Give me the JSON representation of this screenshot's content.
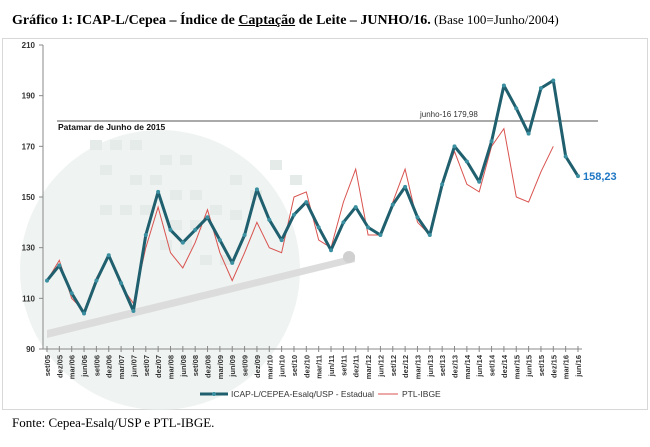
{
  "title": {
    "prefix": "Gráfico 1: ICAP-L/Cepea – Índice de ",
    "underlined": "Captação",
    "rest": " de Leite – JUNHO/16.",
    "base": " (Base 100=Junho/2004)"
  },
  "footer": "Fonte: Cepea-Esalq/USP e PTL-IBGE.",
  "colors": {
    "icap": "#1f5f6e",
    "icap_marker": "#3a8fa0",
    "ptl": "#d9534f",
    "last_label": "#1f77c4",
    "ref_line": "#555555"
  },
  "chart_data": {
    "type": "line",
    "ylim": [
      90,
      210
    ],
    "yticks": [
      90,
      110,
      130,
      150,
      170,
      190,
      210
    ],
    "categories": [
      "set/05",
      "dez/05",
      "mar/06",
      "jun/06",
      "set/06",
      "dez/06",
      "mar/07",
      "jun/07",
      "set/07",
      "dez/07",
      "mar/08",
      "jun/08",
      "set/08",
      "dez/08",
      "mar/09",
      "jun/09",
      "set/09",
      "dez/09",
      "mar/10",
      "jun/10",
      "set/10",
      "dez/10",
      "mar/11",
      "jun/11",
      "set/11",
      "dez/11",
      "mar/12",
      "jun/12",
      "set/12",
      "dez/12",
      "mar/13",
      "jun/13",
      "set/13",
      "dez/13",
      "mar/14",
      "jun/14",
      "set/14",
      "dez/14",
      "mar/15",
      "jun/15",
      "set/15",
      "dez/15",
      "mar/16",
      "jun/16"
    ],
    "series": [
      {
        "name": "ICAP-L/CEPEA-Esalq/USP - Estadual",
        "values": [
          117,
          123,
          112,
          104,
          117,
          127,
          116,
          105,
          135,
          152,
          137,
          132,
          137,
          142,
          133,
          124,
          135,
          153,
          141,
          133,
          143,
          148,
          138,
          129,
          140,
          146,
          138,
          135,
          147,
          154,
          142,
          135,
          155,
          170,
          164,
          156,
          172,
          194,
          185,
          175,
          193,
          196,
          166,
          158.23
        ]
      },
      {
        "name": "PTL-IBGE",
        "values": [
          117,
          125,
          110,
          105,
          118,
          127,
          115,
          108,
          130,
          146,
          128,
          122,
          132,
          145,
          128,
          117,
          128,
          140,
          130,
          128,
          150,
          152,
          133,
          130,
          148,
          161,
          135,
          135,
          148,
          161,
          140,
          135,
          155,
          168,
          155,
          152,
          170,
          177,
          150,
          148,
          160,
          170,
          null,
          null
        ]
      }
    ],
    "reference_line": {
      "value": 179.98,
      "label": "junho-16 179,98"
    },
    "annotation": "Patamar de Junho de 2015",
    "last_value_label": "158,23",
    "legend": [
      "ICAP-L/CEPEA-Esalq/USP - Estadual",
      "PTL-IBGE"
    ],
    "legend_position": "bottom",
    "grid": false
  }
}
